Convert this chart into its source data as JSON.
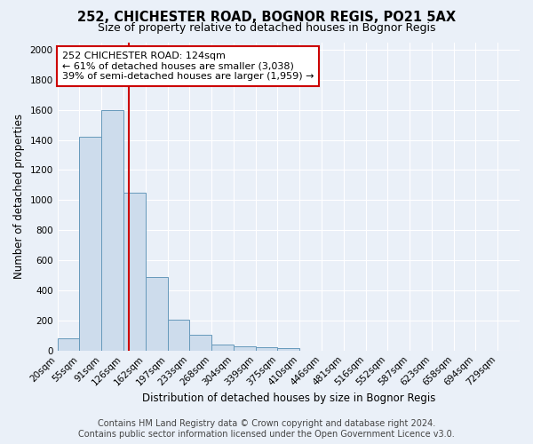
{
  "title": "252, CHICHESTER ROAD, BOGNOR REGIS, PO21 5AX",
  "subtitle": "Size of property relative to detached houses in Bognor Regis",
  "xlabel": "Distribution of detached houses by size in Bognor Regis",
  "ylabel": "Number of detached properties",
  "bin_labels": [
    "20sqm",
    "55sqm",
    "91sqm",
    "126sqm",
    "162sqm",
    "197sqm",
    "233sqm",
    "268sqm",
    "304sqm",
    "339sqm",
    "375sqm",
    "410sqm",
    "446sqm",
    "481sqm",
    "516sqm",
    "552sqm",
    "587sqm",
    "623sqm",
    "658sqm",
    "694sqm",
    "729sqm"
  ],
  "bar_heights": [
    80,
    1420,
    1600,
    1050,
    490,
    205,
    105,
    40,
    25,
    20,
    15,
    0,
    0,
    0,
    0,
    0,
    0,
    0,
    0,
    0,
    0
  ],
  "bar_color": "#cddcec",
  "bar_edge_color": "#6699bb",
  "ylim": [
    0,
    2050
  ],
  "yticks": [
    0,
    200,
    400,
    600,
    800,
    1000,
    1200,
    1400,
    1600,
    1800,
    2000
  ],
  "red_line_x": 2.73,
  "annotation_text": "252 CHICHESTER ROAD: 124sqm\n← 61% of detached houses are smaller (3,038)\n39% of semi-detached houses are larger (1,959) →",
  "annotation_box_color": "#ffffff",
  "annotation_box_edge_color": "#cc0000",
  "footer_line1": "Contains HM Land Registry data © Crown copyright and database right 2024.",
  "footer_line2": "Contains public sector information licensed under the Open Government Licence v3.0.",
  "background_color": "#eaf0f8",
  "plot_bg_color": "#eaf0f8",
  "title_fontsize": 10.5,
  "subtitle_fontsize": 9,
  "annotation_fontsize": 8,
  "footer_fontsize": 7,
  "ylabel_fontsize": 8.5,
  "xlabel_fontsize": 8.5,
  "tick_fontsize": 7.5
}
